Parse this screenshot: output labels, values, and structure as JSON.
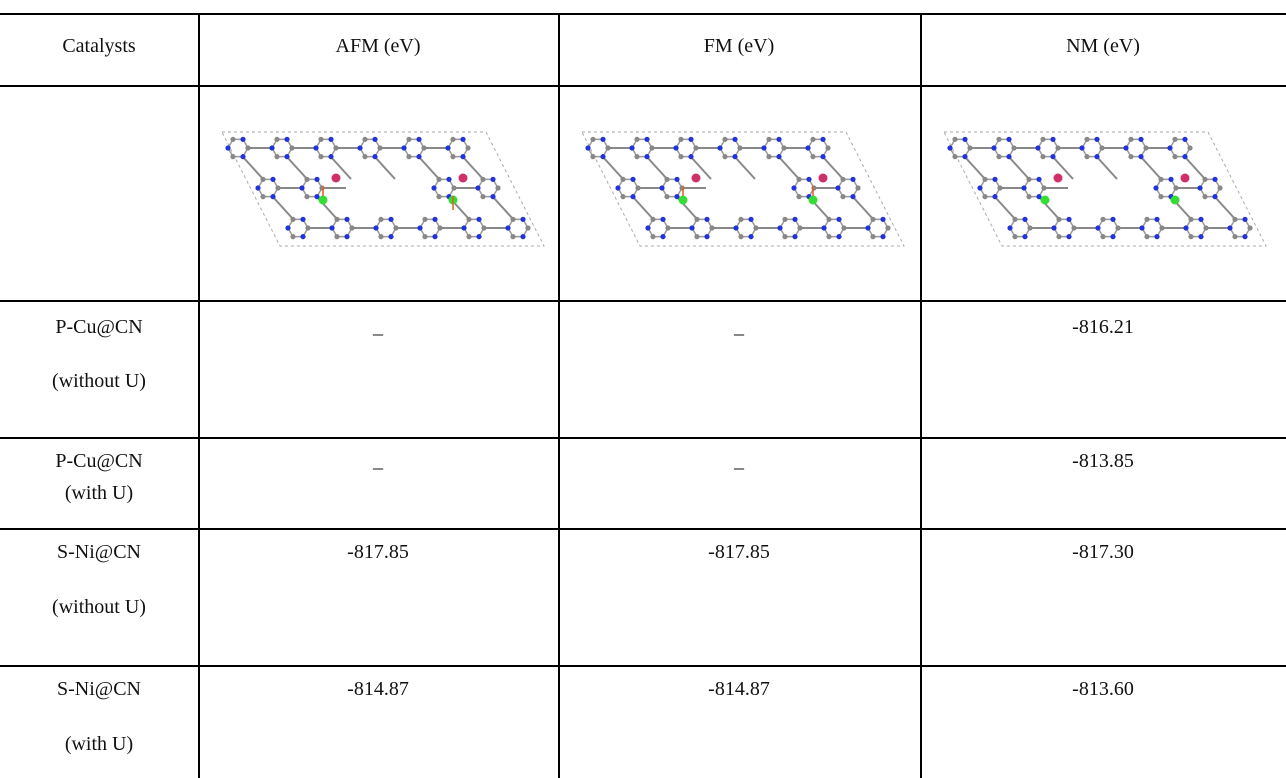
{
  "table": {
    "header": [
      "Catalysts",
      "AFM (eV)",
      "FM (eV)",
      "NM (eV)"
    ],
    "rows": [
      {
        "catalyst": [
          "P-Cu@CN",
          "(without U)"
        ],
        "values": [
          "_",
          "_",
          "-816.21"
        ]
      },
      {
        "catalyst": [
          "P-Cu@CN",
          "(with U)"
        ],
        "values": [
          "_",
          "_",
          "-813.85"
        ]
      },
      {
        "catalyst": [
          "S-Ni@CN",
          "(without U)"
        ],
        "values": [
          "-817.85",
          "-817.85",
          "-817.30"
        ]
      },
      {
        "catalyst": [
          "S-Ni@CN",
          "(with U)"
        ],
        "values": [
          "-814.87",
          "-814.87",
          "-813.60"
        ]
      }
    ]
  }
}
